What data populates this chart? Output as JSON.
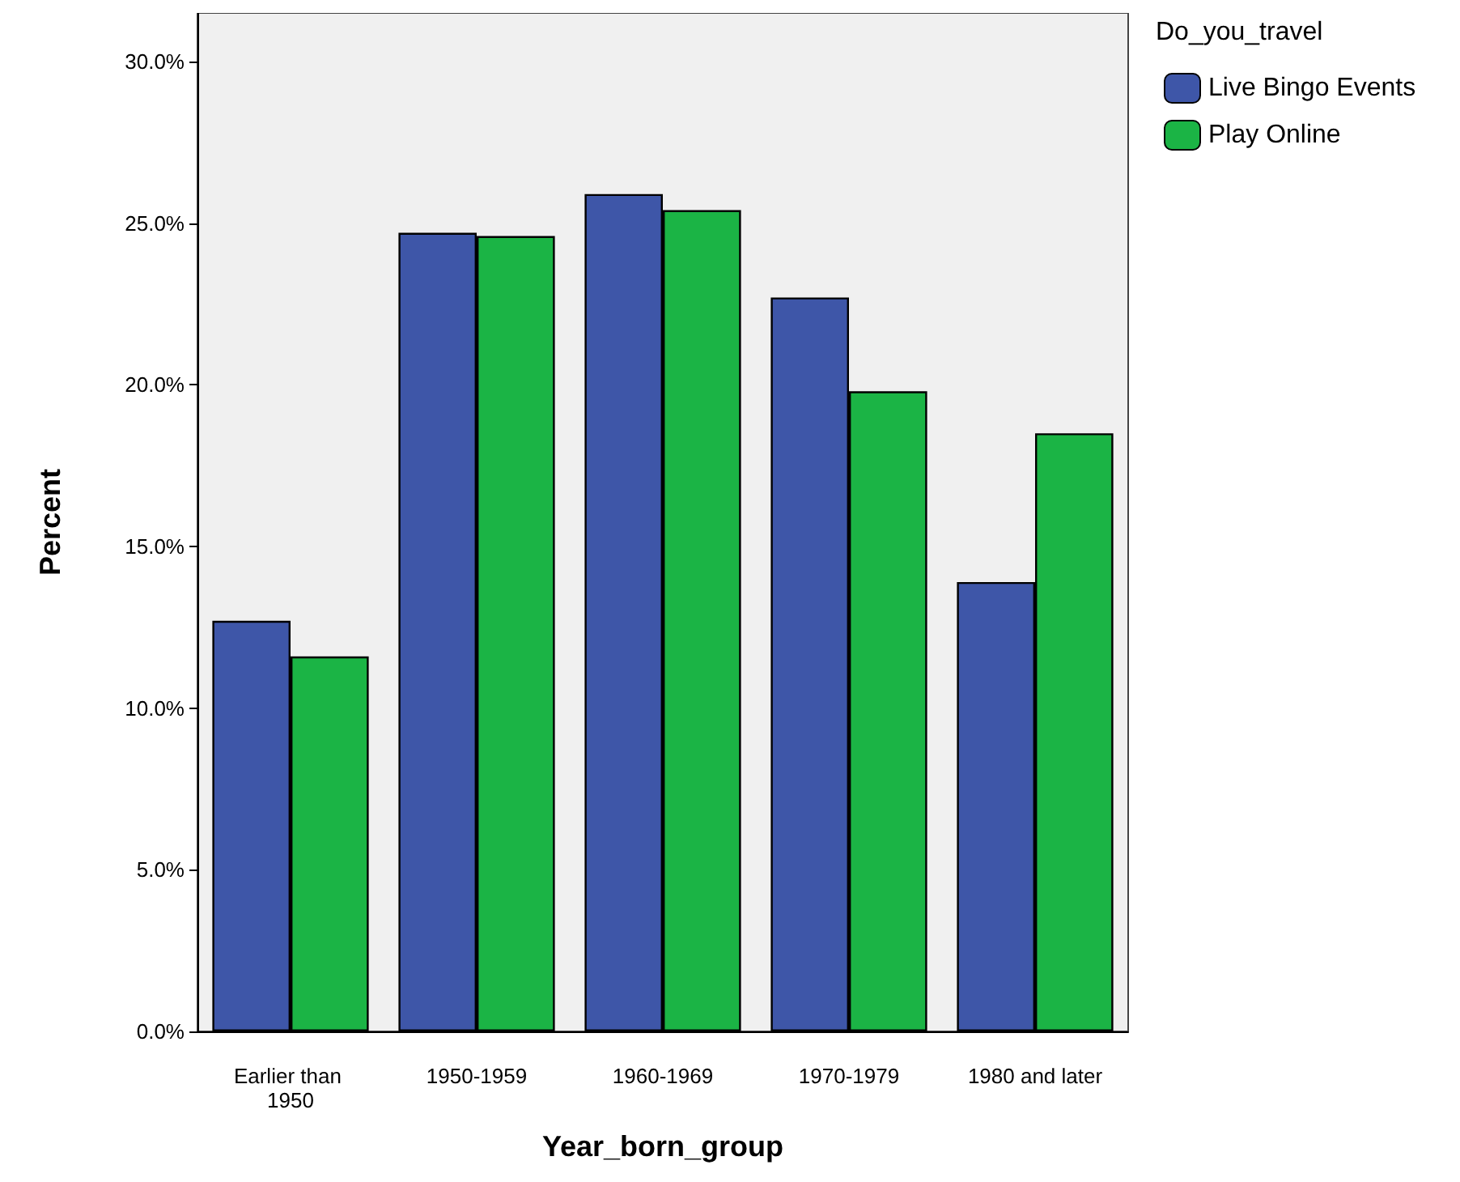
{
  "chart_data": {
    "type": "bar",
    "xlabel": "Year_born_group",
    "ylabel": "Percent",
    "legend_title": "Do_you_travel",
    "categories": [
      "Earlier than 1950",
      "1950-1959",
      "1960-1969",
      "1970-1979",
      "1980 and later"
    ],
    "series": [
      {
        "name": "Live Bingo Events",
        "color": "#3e56a8",
        "values": [
          12.7,
          24.7,
          25.9,
          22.7,
          13.9
        ]
      },
      {
        "name": "Play Online",
        "color": "#1bb445",
        "values": [
          11.6,
          24.6,
          25.4,
          19.8,
          18.5
        ]
      }
    ],
    "ylim": [
      0,
      31.5
    ],
    "yticks": [
      {
        "value": 0,
        "label": "0.0%"
      },
      {
        "value": 5,
        "label": "5.0%"
      },
      {
        "value": 10,
        "label": "10.0%"
      },
      {
        "value": 15,
        "label": "15.0%"
      },
      {
        "value": 20,
        "label": "20.0%"
      },
      {
        "value": 25,
        "label": "25.0%"
      },
      {
        "value": 30,
        "label": "30.0%"
      }
    ],
    "grid": false,
    "legend": "top right"
  }
}
